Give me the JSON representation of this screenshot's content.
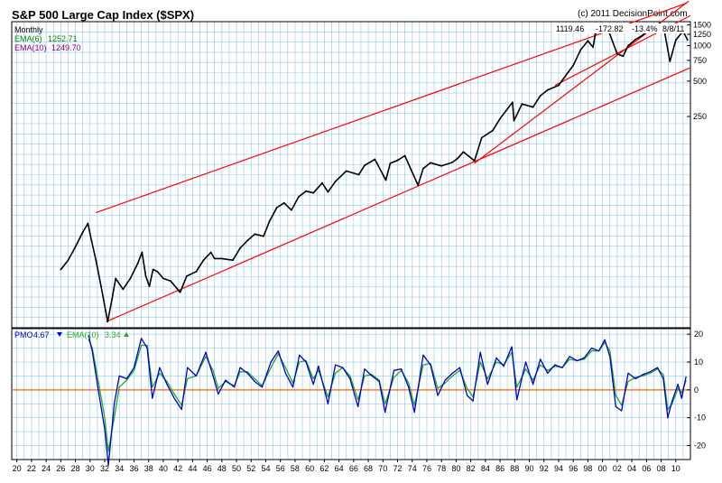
{
  "title": "S&P 500 Large Cap Index ($SPX)",
  "credit": "(c) 2011 DecisionPoint.com",
  "colors": {
    "background": "#ffffff",
    "grid": "#99ccee",
    "price": "#000000",
    "channel": "#ff0000",
    "pmo": "#0000cc",
    "ema_signal": "#22aa22",
    "zero_line": "#ff6600",
    "legend_price_ema6": "#008800",
    "legend_price_ema10": "#880088"
  },
  "chart_data": [
    {
      "type": "line",
      "title": "S&P 500 Large Cap Index ($SPX)",
      "period": "Monthly",
      "scale": "log",
      "grid": true,
      "legend": "top-left",
      "legend_items": [
        {
          "label": "EMA(6)",
          "value": "1252.71"
        },
        {
          "label": "EMA(10)",
          "value": "1249.70"
        }
      ],
      "latest_quote": {
        "close": "1119.46",
        "change": "-172.82",
        "percent": "-13.4%",
        "date": "8/8/11"
      },
      "y_tick_labels": [
        "1500",
        "1250",
        "1000",
        "750",
        "500",
        "250"
      ],
      "y_ticks": [
        1500,
        1250,
        1000,
        750,
        500,
        250
      ],
      "x_tick_labels": [
        "20",
        "22",
        "24",
        "26",
        "28",
        "30",
        "32",
        "34",
        "36",
        "38",
        "40",
        "42",
        "44",
        "46",
        "48",
        "50",
        "52",
        "54",
        "56",
        "58",
        "60",
        "62",
        "64",
        "66",
        "68",
        "70",
        "72",
        "74",
        "76",
        "78",
        "80",
        "82",
        "84",
        "86",
        "88",
        "90",
        "92",
        "94",
        "96",
        "98",
        "00",
        "02",
        "04",
        "06",
        "08",
        "10"
      ],
      "series": [
        {
          "x": [
            1926.0,
            1927.0,
            1928.0,
            1929.0,
            1929.7,
            1930.2,
            1930.8,
            1931.5,
            1932.4,
            1933.0,
            1933.5,
            1934.5,
            1935.5,
            1936.5,
            1937.1,
            1937.6,
            1938.1,
            1938.6,
            1939.2,
            1940.0,
            1941.0,
            1942.3,
            1943.2,
            1944.5,
            1945.5,
            1946.5,
            1947.0,
            1948.0,
            1949.5,
            1950.5,
            1951.5,
            1952.5,
            1953.7,
            1954.5,
            1955.5,
            1956.5,
            1957.5,
            1958.5,
            1959.5,
            1960.5,
            1961.7,
            1962.5,
            1963.5,
            1965.0,
            1966.7,
            1967.5,
            1968.9,
            1970.4,
            1971.0,
            1972.0,
            1973.0,
            1974.8,
            1975.5,
            1976.5,
            1978.0,
            1979.5,
            1980.2,
            1981.0,
            1982.5,
            1983.5,
            1985.0,
            1986.0,
            1987.7,
            1987.9,
            1989.0,
            1990.5,
            1991.5,
            1992.5,
            1994.0,
            1995.0,
            1996.0,
            1997.0,
            1998.0,
            1998.7,
            1999.0,
            2000.0,
            2000.5,
            2001.0,
            2002.0,
            2002.8,
            2003.5,
            2004.5,
            2005.5,
            2006.5,
            2007.8,
            2008.5,
            2009.2,
            2010.0,
            2011.0,
            2011.6
          ],
          "y": [
            12.5,
            15.0,
            19.5,
            26.0,
            30.8,
            22.0,
            15.0,
            9.0,
            4.5,
            7.0,
            10.5,
            8.5,
            10.5,
            14.0,
            17.5,
            11.0,
            9.0,
            12.5,
            12.0,
            10.5,
            10.0,
            8.0,
            11.0,
            12.0,
            15.0,
            17.5,
            15.5,
            15.5,
            15.0,
            19.0,
            22.0,
            25.0,
            24.0,
            32.0,
            42.0,
            46.0,
            40.0,
            52.0,
            58.0,
            56.0,
            68.0,
            57.0,
            70.0,
            86.0,
            80.0,
            96.0,
            108.0,
            72.0,
            100.0,
            106.0,
            116.0,
            65.0,
            90.0,
            101.0,
            95.0,
            102.0,
            110.0,
            125.0,
            105.0,
            165.0,
            190.0,
            240.0,
            330.0,
            230.0,
            320.0,
            300.0,
            375.0,
            420.0,
            460.0,
            560.0,
            680.0,
            920.0,
            1100.0,
            970.0,
            1250.0,
            1470.0,
            1450.0,
            1250.0,
            850.0,
            815.0,
            1000.0,
            1130.0,
            1230.0,
            1400.0,
            1550.0,
            1280.0,
            735.0,
            1115.0,
            1330.0,
            1119.46
          ]
        }
      ]
    },
    {
      "type": "line",
      "title": "",
      "grid": true,
      "legend": "top-left",
      "legend_items": [
        {
          "label": "PMO",
          "value": "4.67",
          "direction": "down"
        },
        {
          "label": "EMA(10)",
          "value": "3.34",
          "direction": "up"
        }
      ],
      "ylim": [
        -25,
        22
      ],
      "y_tick_labels": [
        "20",
        "10",
        "0",
        "-10",
        "-20"
      ],
      "y_ticks": [
        20,
        10,
        0,
        -10,
        -20
      ],
      "x_tick_labels": [
        "20",
        "22",
        "24",
        "26",
        "28",
        "30",
        "32",
        "34",
        "36",
        "38",
        "40",
        "42",
        "44",
        "46",
        "48",
        "50",
        "52",
        "54",
        "56",
        "58",
        "60",
        "62",
        "64",
        "66",
        "68",
        "70",
        "72",
        "74",
        "76",
        "78",
        "80",
        "82",
        "84",
        "86",
        "88",
        "90",
        "92",
        "94",
        "96",
        "98",
        "00",
        "02",
        "04",
        "06",
        "08",
        "10"
      ],
      "series": [
        {
          "name": "PMO",
          "x": [
            1929.8,
            1930.3,
            1931.0,
            1932.0,
            1932.5,
            1933.3,
            1934.0,
            1935.0,
            1936.0,
            1937.0,
            1937.8,
            1938.5,
            1939.5,
            1940.5,
            1941.5,
            1942.5,
            1943.3,
            1944.5,
            1945.8,
            1946.8,
            1947.5,
            1948.5,
            1949.7,
            1950.5,
            1951.5,
            1952.5,
            1953.5,
            1954.7,
            1955.7,
            1956.7,
            1957.7,
            1958.6,
            1959.5,
            1960.5,
            1961.2,
            1962.5,
            1963.5,
            1964.5,
            1965.5,
            1966.6,
            1967.5,
            1968.5,
            1969.5,
            1970.3,
            1971.5,
            1972.5,
            1973.5,
            1974.3,
            1975.5,
            1976.5,
            1977.5,
            1978.5,
            1979.5,
            1980.5,
            1981.5,
            1982.3,
            1983.3,
            1984.3,
            1985.5,
            1986.5,
            1987.6,
            1988.3,
            1989.5,
            1990.5,
            1991.5,
            1992.5,
            1993.5,
            1994.5,
            1995.5,
            1996.5,
            1997.5,
            1998.5,
            1999.5,
            2000.3,
            2001.0,
            2001.8,
            2002.6,
            2003.5,
            2004.5,
            2005.5,
            2006.5,
            2007.5,
            2008.3,
            2008.9,
            2009.5,
            2010.3,
            2010.8,
            2011.4
          ],
          "values": [
            19.5,
            14.0,
            2.0,
            -14.0,
            -27.0,
            -5.0,
            5.0,
            4.0,
            8.0,
            18.5,
            15.0,
            -3.0,
            8.0,
            2.0,
            -3.0,
            -7.0,
            8.0,
            5.0,
            13.5,
            5.0,
            -1.5,
            3.5,
            1.0,
            8.0,
            6.0,
            3.0,
            1.0,
            10.0,
            14.0,
            6.0,
            1.0,
            12.5,
            10.0,
            2.0,
            8.5,
            -5.0,
            9.0,
            8.0,
            4.0,
            -6.0,
            7.5,
            5.0,
            3.0,
            -8.0,
            7.0,
            7.5,
            1.0,
            -8.0,
            12.5,
            9.0,
            -2.0,
            3.5,
            6.0,
            8.0,
            -2.0,
            -4.0,
            13.5,
            2.0,
            11.5,
            8.5,
            15.5,
            -3.5,
            10.0,
            2.0,
            11.0,
            6.0,
            9.0,
            8.0,
            12.0,
            10.5,
            11.5,
            15.0,
            14.0,
            18.0,
            12.0,
            -6.0,
            -7.5,
            6.0,
            4.0,
            5.5,
            6.5,
            8.0,
            4.0,
            -10.0,
            -4.0,
            2.0,
            -3.0,
            4.67
          ]
        },
        {
          "name": "EMA(10)",
          "x": [
            1929.8,
            1930.3,
            1931.0,
            1932.0,
            1932.5,
            1933.3,
            1934.0,
            1935.0,
            1936.0,
            1937.0,
            1937.8,
            1938.5,
            1939.5,
            1940.5,
            1941.5,
            1942.5,
            1943.3,
            1944.5,
            1945.8,
            1946.8,
            1947.5,
            1948.5,
            1949.7,
            1950.5,
            1951.5,
            1952.5,
            1953.5,
            1954.7,
            1955.7,
            1956.7,
            1957.7,
            1958.6,
            1959.5,
            1960.5,
            1961.2,
            1962.5,
            1963.5,
            1964.5,
            1965.5,
            1966.6,
            1967.5,
            1968.5,
            1969.5,
            1970.3,
            1971.5,
            1972.5,
            1973.5,
            1974.3,
            1975.5,
            1976.5,
            1977.5,
            1978.5,
            1979.5,
            1980.5,
            1981.5,
            1982.3,
            1983.3,
            1984.3,
            1985.5,
            1986.5,
            1987.6,
            1988.3,
            1989.5,
            1990.5,
            1991.5,
            1992.5,
            1993.5,
            1994.5,
            1995.5,
            1996.5,
            1997.5,
            1998.5,
            1999.5,
            2000.3,
            2001.0,
            2001.8,
            2002.6,
            2003.5,
            2004.5,
            2005.5,
            2006.5,
            2007.5,
            2008.3,
            2008.9,
            2009.5,
            2010.3,
            2010.8,
            2011.4
          ],
          "values": [
            18.0,
            15.0,
            5.0,
            -10.0,
            -22.0,
            -10.0,
            1.0,
            3.5,
            7.0,
            16.0,
            16.0,
            1.0,
            6.0,
            3.0,
            -1.5,
            -5.5,
            4.0,
            5.0,
            12.0,
            7.0,
            0.5,
            3.0,
            1.5,
            6.5,
            6.5,
            4.0,
            1.5,
            8.0,
            13.0,
            8.0,
            2.5,
            10.0,
            10.5,
            4.0,
            7.0,
            -2.5,
            6.0,
            8.0,
            5.0,
            -3.5,
            5.0,
            5.5,
            3.5,
            -5.0,
            4.5,
            7.0,
            2.5,
            -5.5,
            9.0,
            9.5,
            0.5,
            2.5,
            5.0,
            7.0,
            0.5,
            -2.5,
            10.0,
            4.0,
            10.0,
            9.0,
            13.5,
            1.0,
            7.5,
            3.5,
            9.0,
            7.0,
            8.5,
            8.0,
            11.0,
            10.5,
            11.0,
            14.0,
            14.0,
            17.0,
            14.0,
            -2.0,
            -5.5,
            3.0,
            4.5,
            5.0,
            6.0,
            7.5,
            5.5,
            -7.0,
            -5.0,
            0.5,
            -1.0,
            3.34
          ]
        }
      ]
    }
  ]
}
